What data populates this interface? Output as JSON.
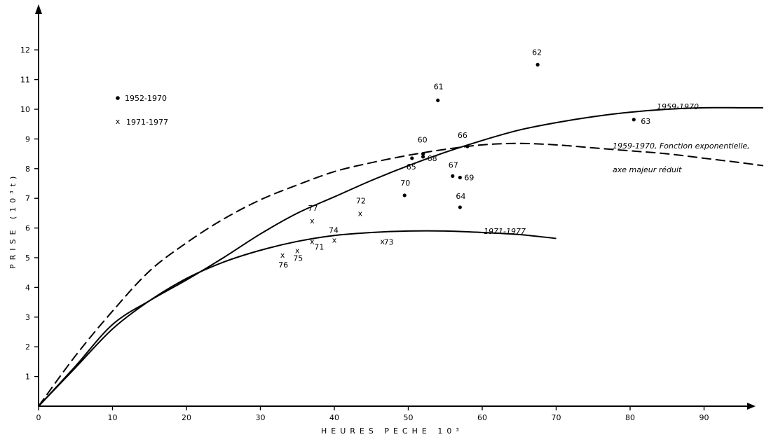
{
  "chart_data": {
    "type": "scatter",
    "xlabel": "HEURES PECHE 10³",
    "ylabel": "PRISE (10³t)",
    "xlim": [
      0,
      100
    ],
    "ylim": [
      0,
      13
    ],
    "xticks": [
      0,
      10,
      20,
      30,
      40,
      50,
      60,
      70,
      80,
      90
    ],
    "yticks": [
      1,
      2,
      3,
      4,
      5,
      6,
      7,
      8,
      9,
      10,
      11,
      12
    ],
    "grid": false,
    "legend": {
      "position": "upper-left",
      "entries": [
        {
          "marker": "dot",
          "label": "1952-1970"
        },
        {
          "marker": "x",
          "label": "1971-1977"
        }
      ]
    },
    "series": [
      {
        "name": "1952-1970",
        "marker": "dot",
        "points": [
          {
            "x": 52,
            "y": 8.5,
            "label": "60"
          },
          {
            "x": 54,
            "y": 10.3,
            "label": "61"
          },
          {
            "x": 67.5,
            "y": 11.5,
            "label": "62"
          },
          {
            "x": 80.5,
            "y": 9.65,
            "label": "63"
          },
          {
            "x": 57,
            "y": 6.7,
            "label": "64"
          },
          {
            "x": 50.5,
            "y": 8.35,
            "label": "65"
          },
          {
            "x": 58,
            "y": 8.75,
            "label": "66"
          },
          {
            "x": 56,
            "y": 7.75,
            "label": "67"
          },
          {
            "x": 52,
            "y": 8.4,
            "label": "68"
          },
          {
            "x": 57,
            "y": 7.7,
            "label": "69"
          },
          {
            "x": 49.5,
            "y": 7.1,
            "label": "70"
          }
        ]
      },
      {
        "name": "1971-1977",
        "marker": "x",
        "points": [
          {
            "x": 37,
            "y": 5.55,
            "label": "71"
          },
          {
            "x": 43.5,
            "y": 6.5,
            "label": "72"
          },
          {
            "x": 46.5,
            "y": 5.55,
            "label": "73"
          },
          {
            "x": 40,
            "y": 5.6,
            "label": "74"
          },
          {
            "x": 35,
            "y": 5.25,
            "label": "75"
          },
          {
            "x": 33,
            "y": 5.1,
            "label": "76"
          },
          {
            "x": 37,
            "y": 6.25,
            "label": "77"
          }
        ]
      }
    ],
    "curves": [
      {
        "label": "1959-1970",
        "style": "solid",
        "points": [
          [
            0,
            0
          ],
          [
            5,
            1.35
          ],
          [
            10,
            2.75
          ],
          [
            15,
            3.55
          ],
          [
            20,
            4.25
          ],
          [
            25,
            5.0
          ],
          [
            30,
            5.8
          ],
          [
            35,
            6.5
          ],
          [
            40,
            7.05
          ],
          [
            45,
            7.6
          ],
          [
            50,
            8.1
          ],
          [
            55,
            8.55
          ],
          [
            60,
            8.95
          ],
          [
            65,
            9.3
          ],
          [
            70,
            9.55
          ],
          [
            75,
            9.75
          ],
          [
            80,
            9.9
          ],
          [
            85,
            10.0
          ],
          [
            90,
            10.05
          ],
          [
            95,
            10.05
          ],
          [
            98,
            10.05
          ]
        ]
      },
      {
        "label": "1959-1970, Fonction exponentielle, axe majeur réduit",
        "style": "dashed",
        "points": [
          [
            0,
            0
          ],
          [
            5,
            1.7
          ],
          [
            10,
            3.2
          ],
          [
            15,
            4.55
          ],
          [
            20,
            5.5
          ],
          [
            25,
            6.3
          ],
          [
            30,
            6.95
          ],
          [
            35,
            7.45
          ],
          [
            40,
            7.9
          ],
          [
            45,
            8.2
          ],
          [
            50,
            8.45
          ],
          [
            55,
            8.65
          ],
          [
            60,
            8.8
          ],
          [
            65,
            8.85
          ],
          [
            70,
            8.8
          ],
          [
            75,
            8.7
          ],
          [
            80,
            8.6
          ],
          [
            85,
            8.5
          ],
          [
            90,
            8.35
          ],
          [
            95,
            8.2
          ],
          [
            98,
            8.1
          ]
        ]
      },
      {
        "label": "1971-1977",
        "style": "solid",
        "points": [
          [
            0,
            0
          ],
          [
            5,
            1.3
          ],
          [
            10,
            2.6
          ],
          [
            15,
            3.55
          ],
          [
            20,
            4.3
          ],
          [
            25,
            4.85
          ],
          [
            30,
            5.25
          ],
          [
            35,
            5.55
          ],
          [
            40,
            5.75
          ],
          [
            45,
            5.85
          ],
          [
            50,
            5.9
          ],
          [
            55,
            5.9
          ],
          [
            60,
            5.85
          ],
          [
            65,
            5.78
          ],
          [
            70,
            5.65
          ]
        ]
      }
    ]
  }
}
